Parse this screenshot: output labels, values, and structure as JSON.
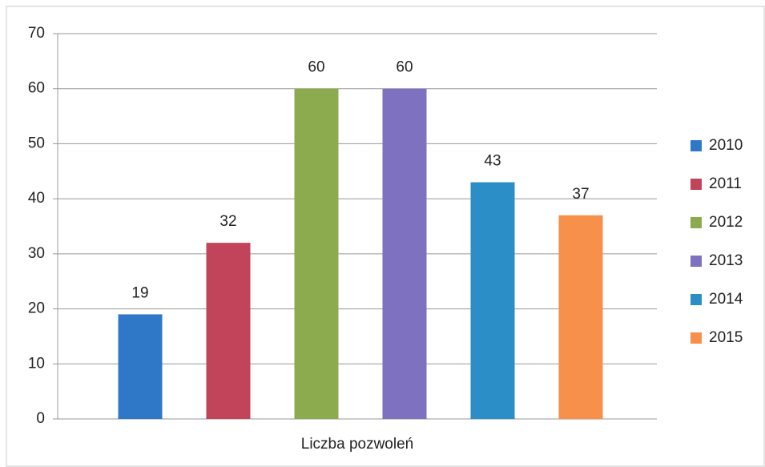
{
  "chart_data": {
    "type": "bar",
    "categories": [
      "Liczba pozwoleń"
    ],
    "series": [
      {
        "name": "2010",
        "color": "#2f78c8",
        "values": [
          19
        ]
      },
      {
        "name": "2011",
        "color": "#c2445a",
        "values": [
          32
        ]
      },
      {
        "name": "2012",
        "color": "#8cab4f",
        "values": [
          60
        ]
      },
      {
        "name": "2013",
        "color": "#7d71c0",
        "values": [
          60
        ]
      },
      {
        "name": "2014",
        "color": "#2b8ec6",
        "values": [
          43
        ]
      },
      {
        "name": "2015",
        "color": "#f6904a",
        "values": [
          37
        ]
      }
    ],
    "ylim": [
      0,
      70
    ],
    "yticks": [
      0,
      10,
      20,
      30,
      40,
      50,
      60,
      70
    ],
    "grid": true,
    "legend": "right"
  }
}
